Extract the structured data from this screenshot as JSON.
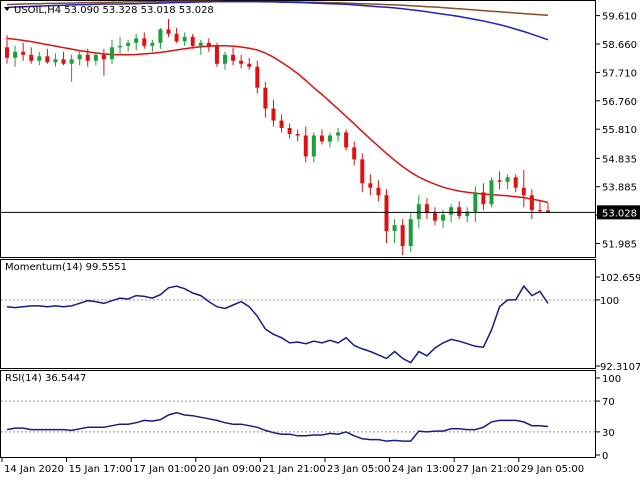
{
  "header": {
    "symbol_line": "USOIL,H4  53.090 53.328 53.018 53.028"
  },
  "chart_data": [
    {
      "type": "candlestick",
      "panel": "price",
      "title": "USOIL,H4  53.090 53.328 53.018 53.028",
      "symbol": "USOIL",
      "timeframe": "H4",
      "ohlc_current": {
        "open": 53.09,
        "high": 53.328,
        "low": 53.018,
        "close": 53.028
      },
      "ylim": [
        51.5,
        60.1
      ],
      "yticks": [
        "59.610",
        "58.660",
        "57.710",
        "56.760",
        "55.810",
        "54.835",
        "53.885",
        "52.935",
        "51.985"
      ],
      "current_price_label": "53.028",
      "current_price": 53.028,
      "colors": {
        "up": "#1e9e3a",
        "down": "#e01010",
        "ma_fast": "#e01010",
        "ma_mid": "#2020c8",
        "ma_slow": "#8b4b26",
        "price_line": "#000000"
      },
      "candles": [
        [
          58.55,
          58.95,
          58.0,
          58.2
        ],
        [
          58.2,
          58.6,
          57.9,
          58.4
        ],
        [
          58.4,
          58.7,
          58.1,
          58.3
        ],
        [
          58.3,
          58.55,
          58.0,
          58.1
        ],
        [
          58.1,
          58.4,
          57.95,
          58.25
        ],
        [
          58.25,
          58.5,
          58.0,
          58.05
        ],
        [
          58.05,
          58.35,
          57.9,
          58.15
        ],
        [
          58.15,
          58.4,
          57.95,
          58.0
        ],
        [
          58.0,
          58.3,
          57.4,
          58.15
        ],
        [
          58.15,
          58.45,
          57.95,
          58.3
        ],
        [
          58.3,
          58.5,
          57.9,
          58.1
        ],
        [
          58.1,
          58.4,
          57.95,
          58.3
        ],
        [
          58.3,
          58.5,
          57.6,
          58.15
        ],
        [
          58.15,
          58.8,
          58.0,
          58.55
        ],
        [
          58.55,
          58.9,
          58.3,
          58.6
        ],
        [
          58.6,
          58.8,
          58.4,
          58.7
        ],
        [
          58.7,
          59.0,
          58.45,
          58.85
        ],
        [
          58.85,
          59.05,
          58.5,
          58.6
        ],
        [
          58.6,
          58.8,
          58.4,
          58.7
        ],
        [
          58.7,
          59.2,
          58.5,
          59.15
        ],
        [
          59.15,
          59.5,
          58.9,
          59.0
        ],
        [
          59.0,
          59.2,
          58.7,
          58.75
        ],
        [
          58.75,
          59.05,
          58.6,
          58.9
        ],
        [
          58.9,
          59.0,
          58.5,
          58.6
        ],
        [
          58.6,
          58.8,
          58.3,
          58.7
        ],
        [
          58.7,
          58.85,
          58.4,
          58.6
        ],
        [
          58.6,
          58.7,
          57.9,
          58.0
        ],
        [
          58.0,
          58.4,
          57.8,
          58.3
        ],
        [
          58.3,
          58.55,
          57.95,
          58.1
        ],
        [
          58.1,
          58.3,
          57.85,
          58.0
        ],
        [
          58.0,
          58.2,
          57.8,
          57.9
        ],
        [
          57.9,
          58.1,
          57.0,
          57.2
        ],
        [
          57.2,
          57.4,
          56.2,
          56.5
        ],
        [
          56.5,
          56.8,
          55.9,
          56.1
        ],
        [
          56.1,
          56.3,
          55.7,
          55.85
        ],
        [
          55.85,
          56.0,
          55.5,
          55.65
        ],
        [
          55.65,
          55.8,
          55.4,
          55.6
        ],
        [
          55.6,
          55.9,
          54.7,
          54.9
        ],
        [
          54.9,
          55.7,
          54.7,
          55.6
        ],
        [
          55.6,
          55.8,
          55.3,
          55.4
        ],
        [
          55.4,
          55.7,
          55.2,
          55.6
        ],
        [
          55.6,
          55.85,
          55.4,
          55.7
        ],
        [
          55.7,
          55.8,
          55.1,
          55.2
        ],
        [
          55.2,
          55.4,
          54.6,
          54.8
        ],
        [
          54.8,
          55.0,
          53.7,
          54.0
        ],
        [
          54.0,
          54.3,
          53.6,
          53.85
        ],
        [
          53.85,
          54.1,
          53.4,
          53.6
        ],
        [
          53.6,
          53.8,
          52.0,
          52.4
        ],
        [
          52.4,
          52.8,
          52.0,
          52.6
        ],
        [
          52.6,
          52.8,
          51.6,
          51.9
        ],
        [
          51.9,
          53.0,
          51.7,
          52.8
        ],
        [
          52.8,
          53.6,
          52.5,
          53.3
        ],
        [
          53.3,
          53.5,
          52.8,
          53.0
        ],
        [
          53.0,
          53.2,
          52.6,
          52.75
        ],
        [
          52.75,
          53.1,
          52.5,
          52.95
        ],
        [
          52.95,
          53.3,
          52.7,
          53.2
        ],
        [
          53.2,
          53.4,
          52.8,
          52.9
        ],
        [
          52.9,
          53.2,
          52.7,
          53.05
        ],
        [
          53.05,
          53.9,
          52.7,
          53.7
        ],
        [
          53.7,
          54.0,
          53.1,
          53.3
        ],
        [
          53.3,
          54.2,
          53.2,
          54.1
        ],
        [
          54.1,
          54.4,
          53.8,
          54.05
        ],
        [
          54.05,
          54.3,
          53.8,
          54.2
        ],
        [
          54.2,
          54.3,
          53.7,
          53.85
        ],
        [
          53.85,
          54.45,
          53.2,
          53.6
        ],
        [
          53.6,
          53.8,
          52.8,
          53.1
        ],
        [
          53.1,
          53.4,
          53.0,
          53.09
        ],
        [
          53.09,
          53.33,
          53.02,
          53.03
        ]
      ],
      "ma_fast": [
        58.85,
        58.82,
        58.78,
        58.74,
        58.69,
        58.64,
        58.59,
        58.54,
        58.49,
        58.44,
        58.4,
        58.36,
        58.33,
        58.31,
        58.3,
        58.3,
        58.31,
        58.33,
        58.35,
        58.38,
        58.42,
        58.46,
        58.5,
        58.54,
        58.57,
        58.59,
        58.6,
        58.6,
        58.59,
        58.56,
        58.52,
        58.46,
        58.36,
        58.22,
        58.05,
        57.87,
        57.67,
        57.44,
        57.2,
        56.97,
        56.73,
        56.49,
        56.24,
        55.99,
        55.73,
        55.48,
        55.24,
        55.0,
        54.77,
        54.56,
        54.37,
        54.21,
        54.08,
        53.97,
        53.87,
        53.8,
        53.74,
        53.7,
        53.67,
        53.64,
        53.62,
        53.6,
        53.58,
        53.55,
        53.52,
        53.47,
        53.42,
        53.36
      ],
      "ma_mid": [
        59.88,
        59.9,
        59.91,
        59.92,
        59.93,
        59.94,
        59.95,
        59.96,
        59.97,
        59.98,
        59.98,
        59.99,
        60.0,
        60.0,
        60.0,
        60.01,
        60.01,
        60.02,
        60.02,
        60.03,
        60.04,
        60.05,
        60.05,
        60.06,
        60.07,
        60.07,
        60.08,
        60.08,
        60.08,
        60.08,
        60.08,
        60.08,
        60.07,
        60.07,
        60.06,
        60.06,
        60.05,
        60.04,
        60.03,
        60.02,
        60.01,
        60.0,
        59.99,
        59.97,
        59.95,
        59.93,
        59.91,
        59.89,
        59.87,
        59.84,
        59.81,
        59.78,
        59.74,
        59.7,
        59.66,
        59.62,
        59.58,
        59.53,
        59.48,
        59.43,
        59.37,
        59.31,
        59.24,
        59.16,
        59.08,
        58.99,
        58.9,
        58.8
      ],
      "ma_slow": [
        59.98,
        59.99,
        60.0,
        60.01,
        60.01,
        60.02,
        60.02,
        60.03,
        60.03,
        60.04,
        60.04,
        60.05,
        60.05,
        60.06,
        60.06,
        60.07,
        60.07,
        60.08,
        60.08,
        60.08,
        60.09,
        60.09,
        60.09,
        60.09,
        60.09,
        60.09,
        60.09,
        60.08,
        60.08,
        60.08,
        60.08,
        60.08,
        60.08,
        60.08,
        60.08,
        60.07,
        60.07,
        60.06,
        60.06,
        60.05,
        60.04,
        60.04,
        60.03,
        60.02,
        60.01,
        60.0,
        59.99,
        59.98,
        59.97,
        59.96,
        59.94,
        59.93,
        59.91,
        59.9,
        59.88,
        59.86,
        59.84,
        59.82,
        59.8,
        59.78,
        59.76,
        59.74,
        59.72,
        59.7,
        59.68,
        59.66,
        59.64,
        59.62
      ]
    },
    {
      "type": "line",
      "panel": "momentum",
      "title": "Momentum(14) 99.5551",
      "ylim": [
        92.3107,
        102.6591
      ],
      "yticks": [
        "102.6591",
        "100",
        "92.3107"
      ],
      "reference_line": 100,
      "color": "#1a1a8c",
      "values": [
        99.2,
        99.1,
        99.2,
        99.3,
        99.3,
        99.2,
        99.3,
        99.2,
        99.3,
        99.6,
        99.9,
        99.8,
        99.6,
        99.9,
        100.2,
        100.1,
        100.5,
        100.4,
        100.2,
        100.6,
        101.4,
        101.6,
        101.3,
        100.8,
        100.5,
        99.8,
        99.2,
        99.0,
        99.4,
        99.8,
        99.2,
        98.1,
        96.6,
        96.0,
        95.6,
        95.0,
        95.1,
        94.9,
        95.2,
        95.0,
        95.3,
        95.0,
        95.6,
        94.7,
        94.3,
        94.0,
        93.6,
        93.2,
        94.0,
        93.2,
        92.7,
        94.0,
        93.5,
        94.4,
        95.0,
        95.4,
        95.2,
        94.9,
        94.6,
        94.5,
        96.5,
        99.2,
        100.0,
        100.0,
        101.6,
        100.5,
        101.0,
        99.6
      ]
    },
    {
      "type": "line",
      "panel": "rsi",
      "title": "RSI(14) 36.5447",
      "ylim": [
        0,
        100
      ],
      "yticks": [
        "100",
        "70",
        "30",
        "0"
      ],
      "levels": [
        70,
        30
      ],
      "color": "#1a1a8c",
      "values": [
        33,
        35,
        35,
        33,
        33,
        33,
        33,
        33,
        32,
        34,
        36,
        36,
        36,
        38,
        40,
        40,
        42,
        45,
        44,
        46,
        52,
        55,
        52,
        51,
        49,
        47,
        45,
        42,
        40,
        40,
        38,
        36,
        32,
        29,
        27,
        27,
        25,
        25,
        26,
        26,
        28,
        27,
        30,
        25,
        21,
        20,
        20,
        18,
        19,
        18,
        18,
        31,
        30,
        31,
        31,
        34,
        34,
        33,
        33,
        36,
        43,
        45,
        45,
        45,
        43,
        38,
        38,
        37
      ]
    }
  ],
  "xaxis": {
    "labels": [
      "14 Jan 2020",
      "15 Jan 17:00",
      "17 Jan 01:00",
      "20 Jan 09:00",
      "21 Jan 21:00",
      "23 Jan 05:00",
      "24 Jan 13:00",
      "27 Jan 21:00",
      "29 Jan 05:00"
    ],
    "label_candle_index": [
      0,
      8,
      16,
      24,
      32,
      40,
      48,
      56,
      64
    ]
  }
}
